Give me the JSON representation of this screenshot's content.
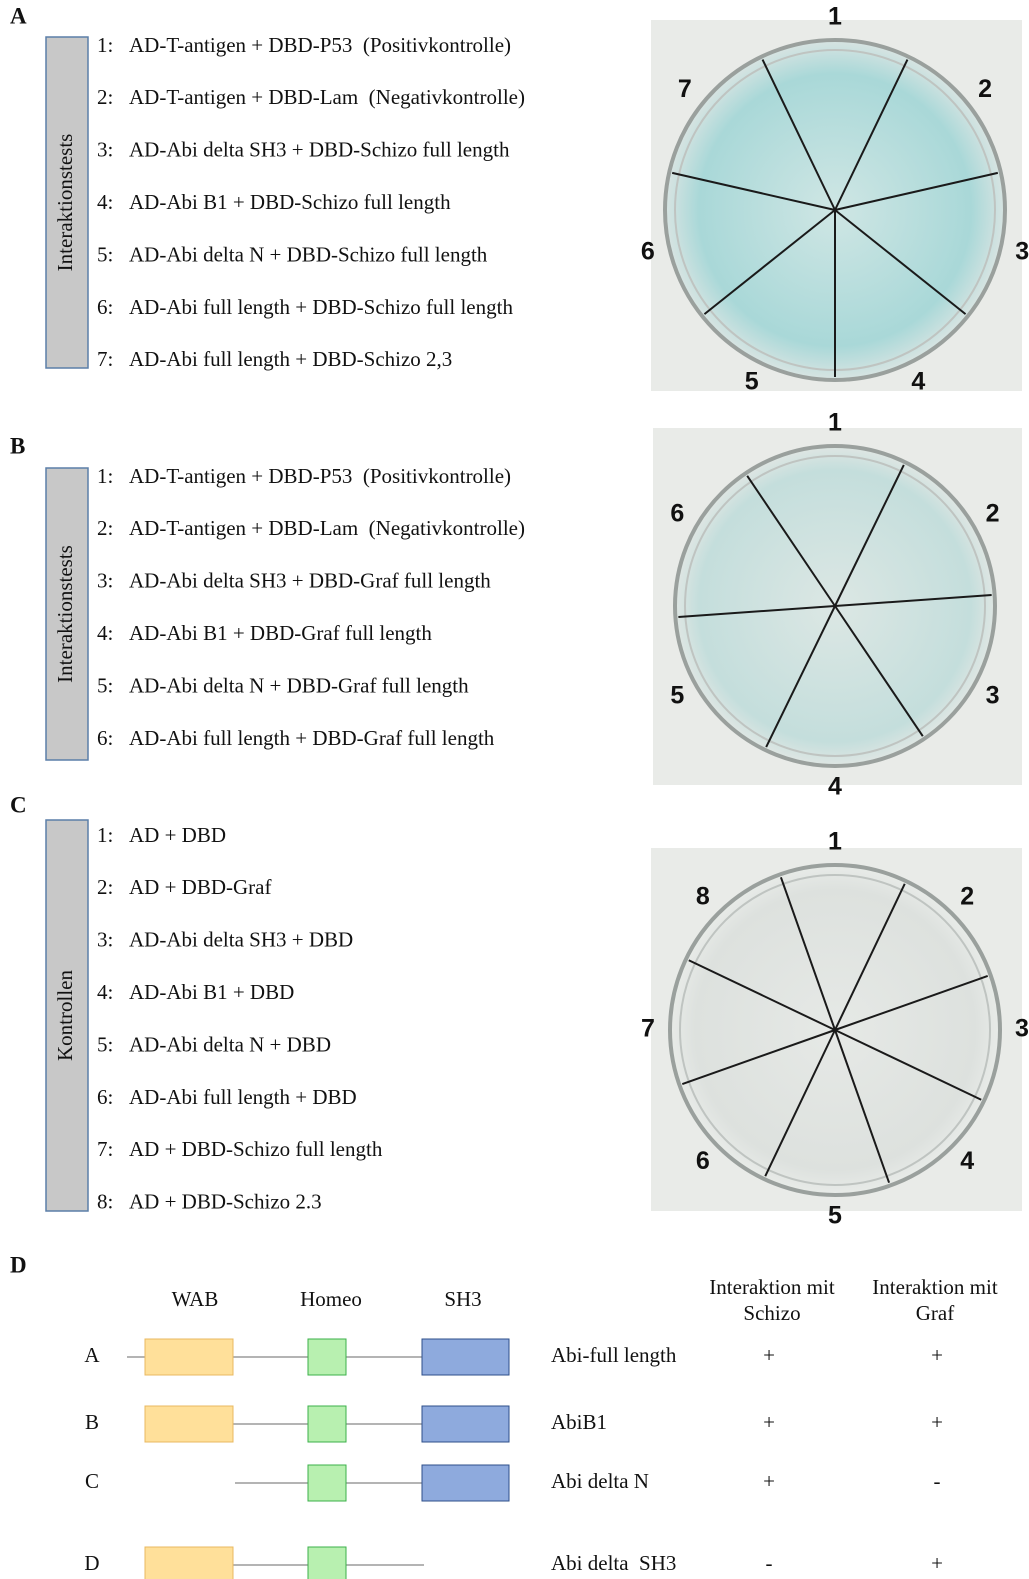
{
  "panels": [
    {
      "letter": "A",
      "side_label": "Interaktionstests",
      "items": [
        {
          "num": "1:",
          "text": "AD-T-antigen + DBD-P53  (Positivkontrolle)"
        },
        {
          "num": "2:",
          "text": "AD-T-antigen + DBD-Lam  (Negativkontrolle)"
        },
        {
          "num": "3:",
          "text": "AD-Abi delta SH3 + DBD-Schizo full length"
        },
        {
          "num": "4:",
          "text": "AD-Abi B1 + DBD-Schizo full length"
        },
        {
          "num": "5:",
          "text": "AD-Abi delta N + DBD-Schizo full length"
        },
        {
          "num": "6:",
          "text": "AD-Abi full length + DBD-Schizo full length"
        },
        {
          "num": "7:",
          "text": "AD-Abi full length + DBD-Schizo 2,3"
        }
      ],
      "plate_labels": [
        "1",
        "2",
        "3",
        "4",
        "5",
        "6",
        "7"
      ]
    },
    {
      "letter": "B",
      "side_label": "Interaktionstests",
      "items": [
        {
          "num": "1:",
          "text": "AD-T-antigen + DBD-P53  (Positivkontrolle)"
        },
        {
          "num": "2:",
          "text": "AD-T-antigen + DBD-Lam  (Negativkontrolle)"
        },
        {
          "num": "3:",
          "text": "AD-Abi delta SH3 + DBD-Graf full length"
        },
        {
          "num": "4:",
          "text": "AD-Abi B1 + DBD-Graf full length"
        },
        {
          "num": "5:",
          "text": "AD-Abi delta N + DBD-Graf full length"
        },
        {
          "num": "6:",
          "text": "AD-Abi full length + DBD-Graf full length"
        }
      ],
      "plate_labels": [
        "1",
        "2",
        "3",
        "4",
        "5",
        "6"
      ]
    },
    {
      "letter": "C",
      "side_label": "Kontrollen",
      "items": [
        {
          "num": "1:",
          "text": "AD + DBD"
        },
        {
          "num": "2:",
          "text": "AD + DBD-Graf"
        },
        {
          "num": "3:",
          "text": "AD-Abi delta SH3 + DBD"
        },
        {
          "num": "4:",
          "text": "AD-Abi B1 + DBD"
        },
        {
          "num": "5:",
          "text": "AD-Abi delta N + DBD"
        },
        {
          "num": "6:",
          "text": "AD-Abi full length + DBD"
        },
        {
          "num": "7:",
          "text": "AD + DBD-Schizo full length"
        },
        {
          "num": "8:",
          "text": "AD + DBD-Schizo 2.3"
        }
      ],
      "plate_labels": [
        "1",
        "2",
        "3",
        "4",
        "5",
        "6",
        "7",
        "8"
      ]
    }
  ],
  "panel_d": {
    "letter": "D",
    "domains": [
      "WAB",
      "Homeo",
      "SH3"
    ],
    "columns": [
      [
        "Interaktion mit",
        "Schizo"
      ],
      [
        "Interaktion mit",
        "Graf"
      ]
    ],
    "rows": [
      {
        "id": "A",
        "name": "Abi-full length",
        "schizo": "+",
        "graf": "+"
      },
      {
        "id": "B",
        "name": "AbiB1",
        "schizo": "+",
        "graf": "+"
      },
      {
        "id": "C",
        "name": "Abi delta N",
        "schizo": "+",
        "graf": "-"
      },
      {
        "id": "D",
        "name": "Abi delta  SH3",
        "schizo": "-",
        "graf": "+"
      }
    ]
  }
}
